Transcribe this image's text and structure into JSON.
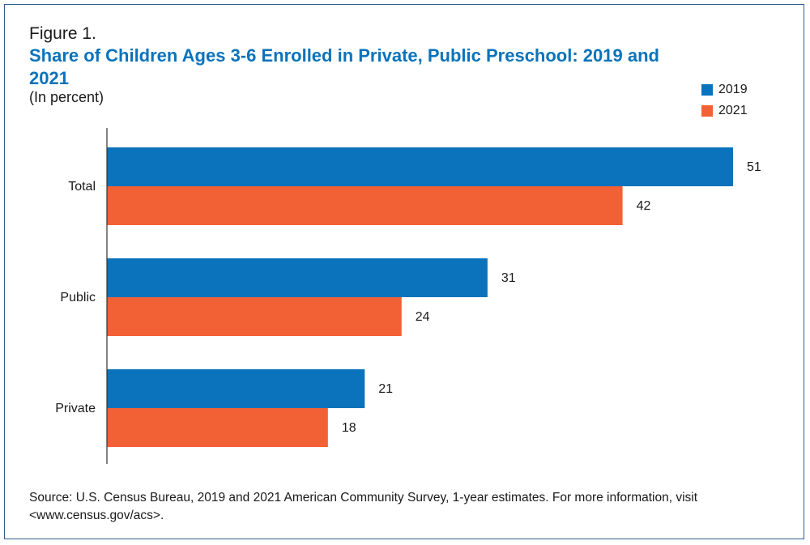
{
  "figure_label": "Figure 1.",
  "source": "Source: U.S. Census Bureau, 2019 and 2021 American Community Survey, 1-year estimates. For more information, visit <www.census.gov/acs>.",
  "chart_data": {
    "type": "bar",
    "orientation": "horizontal",
    "title": "Share of Children Ages 3-6 Enrolled in Private, Public Preschool: 2019 and 2021",
    "subtitle": "(In percent)",
    "categories": [
      "Total",
      "Public",
      "Private"
    ],
    "series": [
      {
        "name": "2019",
        "color": "#0a73bb",
        "values": [
          51,
          31,
          21
        ]
      },
      {
        "name": "2021",
        "color": "#f26035",
        "values": [
          42,
          24,
          18
        ]
      }
    ],
    "xlim": [
      0,
      51
    ],
    "grid": false,
    "legend": "top-right",
    "data_labels": true
  }
}
